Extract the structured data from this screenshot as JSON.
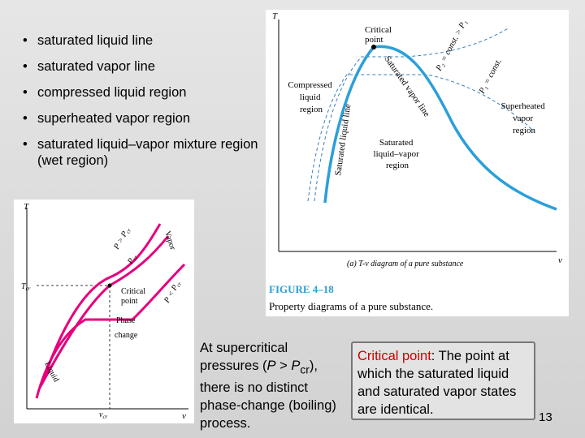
{
  "bullets": [
    "saturated liquid line",
    "saturated vapor line",
    "compressed liquid region",
    "superheated vapor region",
    "saturated liquid–vapor mixture region (wet region)"
  ],
  "bullet_symbol": "•",
  "tv_diagram": {
    "axis_y": "T",
    "axis_x": "v",
    "critical_point": [
      "Critical",
      "point"
    ],
    "sat_liquid_line": [
      "Saturated",
      "liquid",
      "line"
    ],
    "sat_vapor_line": [
      "Saturated",
      "vapor",
      "line"
    ],
    "compressed_region": [
      "Compressed",
      "liquid",
      "region"
    ],
    "superheated_region": [
      "Superheated",
      "vapor",
      "region"
    ],
    "mixture_region": [
      "Saturated",
      "liquid–vapor",
      "region"
    ],
    "p2_label": "P₂ = const. > P₁",
    "p1_label": "P₁ = const.",
    "subcaption": "(a) T-v diagram of a pure substance",
    "figure_number": "FIGURE 4–18",
    "figure_title": "Property diagrams of a pure substance."
  },
  "supercritical_diagram": {
    "axis_y": "T",
    "axis_x": "v",
    "tcr_label": "T",
    "tcr_sub": "cr",
    "vcr_label": "v",
    "vcr_sub": "cr",
    "p_gt_pcr": "P > P",
    "p_gt_sub": "cr",
    "pcr_label": "P",
    "pcr_sub": "cr",
    "p_lt_pcr": "P < P",
    "p_lt_sub": "cr",
    "vapor": "Vapor",
    "critical_point": [
      "Critical",
      "point"
    ],
    "phase": "Phase",
    "change": "change",
    "liquid": "Liquid"
  },
  "caption": {
    "pre": "At supercritical pressures (",
    "p": "P",
    "gt": " > ",
    "pcr": "P",
    "cr": "cr",
    "post": "), there is no distinct phase-change (boiling) process."
  },
  "callout": {
    "term": "Critical point",
    "definition": ": The point at which the saturated liquid and saturated vapor states are identical."
  },
  "page_number": "13",
  "colors": {
    "curve_blue": "#2b9fd9",
    "curve_magenta": "#e6007e",
    "dashed": "#3a7fb5",
    "critical_red": "#cc0000"
  }
}
